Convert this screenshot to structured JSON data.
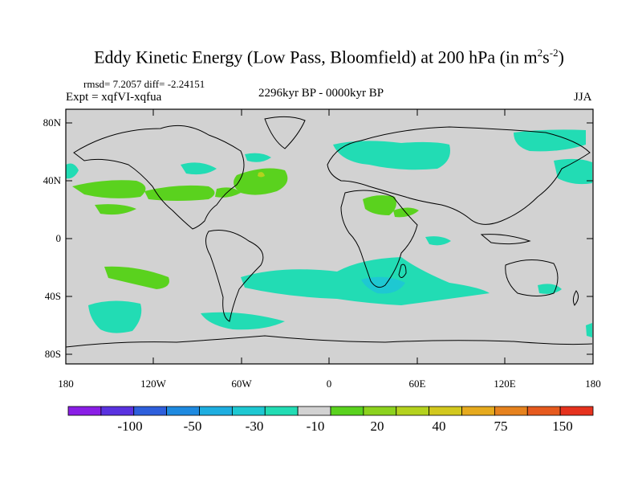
{
  "title": {
    "main": "Eddy Kinetic Energy (Low Pass, Bloomfield) at 200 hPa (in m",
    "sup1": "2",
    "mid": "s",
    "sup2": "-2",
    "end": ")"
  },
  "stats": "rmsd= 7.2057 diff= -2.24151",
  "expt": "Expt = xqfVI-xqfua",
  "period": "2296kyr BP - 0000kyr BP",
  "season": "JJA",
  "lat_labels": [
    "80N",
    "40N",
    "0",
    "40S",
    "80S"
  ],
  "lon_labels": [
    "180",
    "120W",
    "60W",
    "0",
    "60E",
    "120E",
    "180"
  ],
  "colorbar": {
    "colors": [
      "#8a1ee6",
      "#5a32e0",
      "#2e5fdc",
      "#1e8ae0",
      "#1eaee0",
      "#1ec8d2",
      "#22dcb4",
      "#d2d2d2",
      "#5ad21e",
      "#8cd21e",
      "#b4d21e",
      "#d2c81e",
      "#e6aa1e",
      "#e6821e",
      "#e65a1e",
      "#e6321e"
    ],
    "labels": [
      "-100",
      "-50",
      "-30",
      "-10",
      "20",
      "40",
      "75",
      "150"
    ]
  },
  "legend_colors": {
    "neg_small": "#22dcb4",
    "neg_mid": "#1ec8d2",
    "pos_small": "#5ad21e",
    "pos_mid": "#b4d21e",
    "land_bg": "#d2d2d2"
  }
}
